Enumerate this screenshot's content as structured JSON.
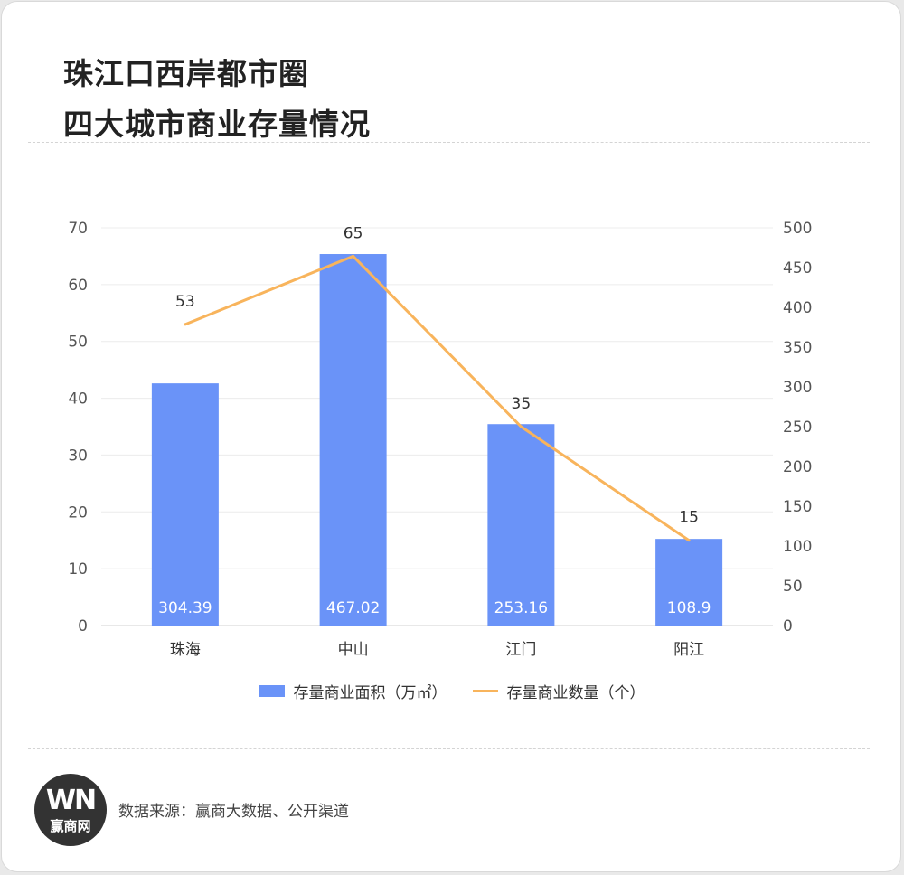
{
  "header": {
    "title_line1": "珠江口西岸都市圈",
    "title_line2": "四大城市商业存量情况"
  },
  "colors": {
    "bar": "#6a93f8",
    "line": "#f8b45c"
  },
  "chart_data": {
    "type": "bar",
    "categories": [
      "珠海",
      "中山",
      "江门",
      "阳江"
    ],
    "series": [
      {
        "name": "存量商业面积（万㎡）",
        "type": "bar",
        "axis": "right",
        "values": [
          304.39,
          467.02,
          253.16,
          108.9
        ],
        "labels": [
          "304.39",
          "467.02",
          "253.16",
          "108.9"
        ]
      },
      {
        "name": "存量商业数量（个）",
        "type": "line",
        "axis": "left",
        "values": [
          53,
          65,
          35,
          15
        ],
        "labels": [
          "53",
          "65",
          "35",
          "15"
        ]
      }
    ],
    "y_left": {
      "min": 0,
      "max": 70,
      "step": 10
    },
    "y_right": {
      "min": 0,
      "max": 500,
      "step": 50
    },
    "grid": true,
    "legend": "bottom"
  },
  "footer": {
    "logo_mark": "WN",
    "logo_text": "赢商网",
    "source": "数据来源：赢商大数据、公开渠道"
  }
}
